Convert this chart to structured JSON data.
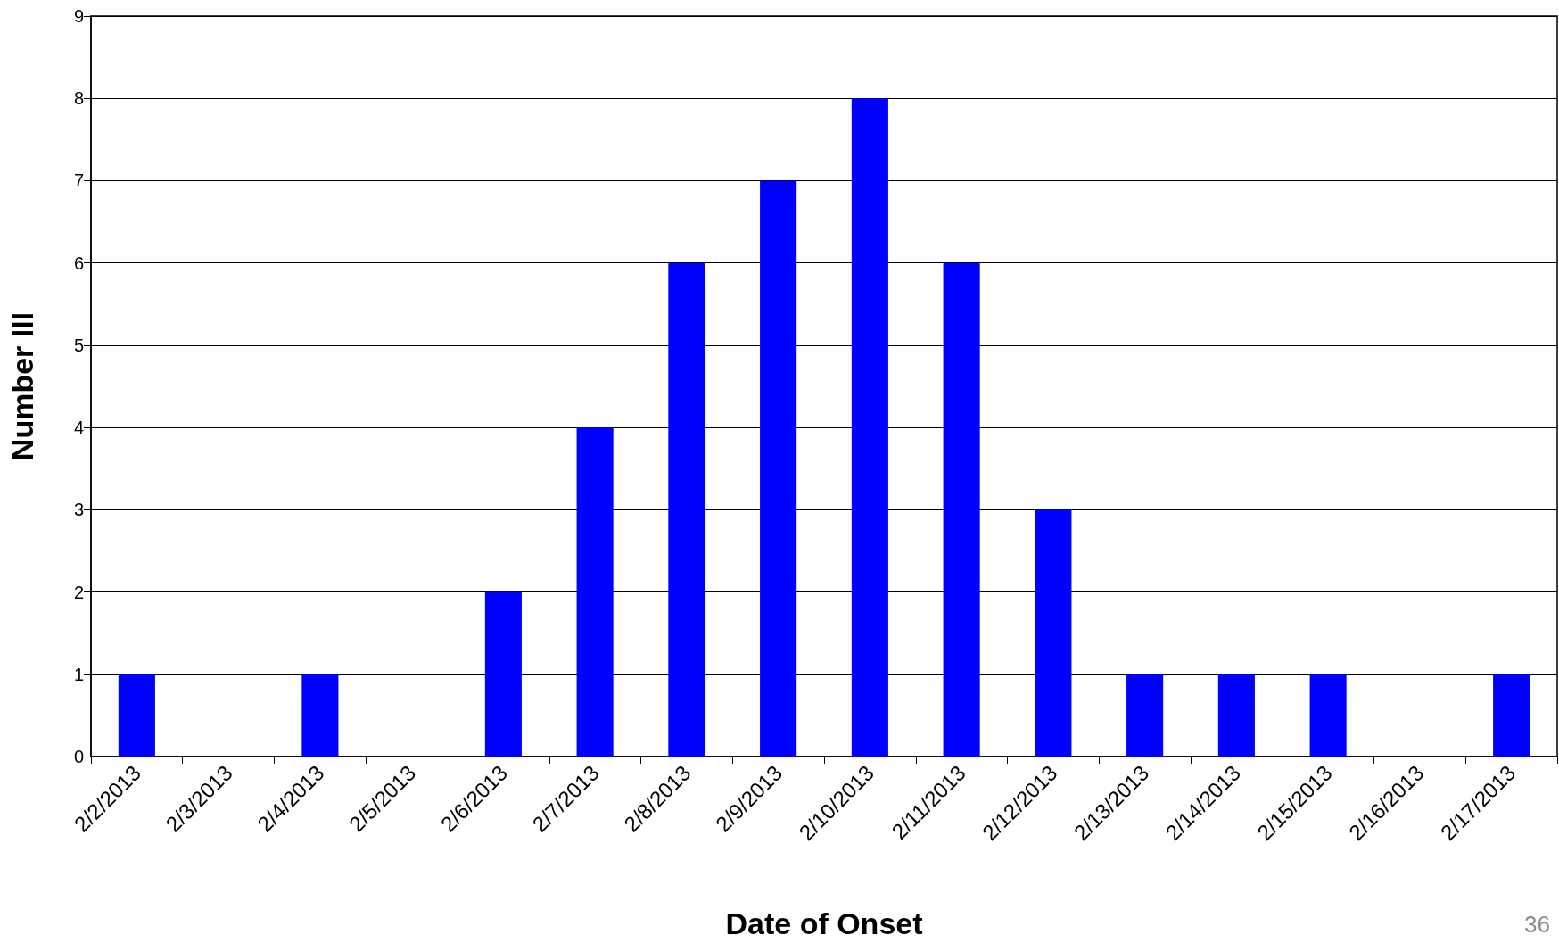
{
  "chart_data": {
    "type": "bar",
    "xlabel": "Date of Onset",
    "ylabel": "Number Ill",
    "categories": [
      "2/2/2013",
      "2/3/2013",
      "2/4/2013",
      "2/5/2013",
      "2/6/2013",
      "2/7/2013",
      "2/8/2013",
      "2/9/2013",
      "2/10/2013",
      "2/11/2013",
      "2/12/2013",
      "2/13/2013",
      "2/14/2013",
      "2/15/2013",
      "2/16/2013",
      "2/17/2013"
    ],
    "values": [
      1,
      0,
      1,
      0,
      2,
      4,
      6,
      7,
      8,
      6,
      3,
      1,
      1,
      1,
      0,
      1
    ],
    "color": "#0000ff",
    "ylim": [
      0,
      9
    ],
    "yticks": [
      0,
      1,
      2,
      3,
      4,
      5,
      6,
      7,
      8,
      9
    ],
    "grid": "y",
    "annotations": [
      "36"
    ]
  }
}
